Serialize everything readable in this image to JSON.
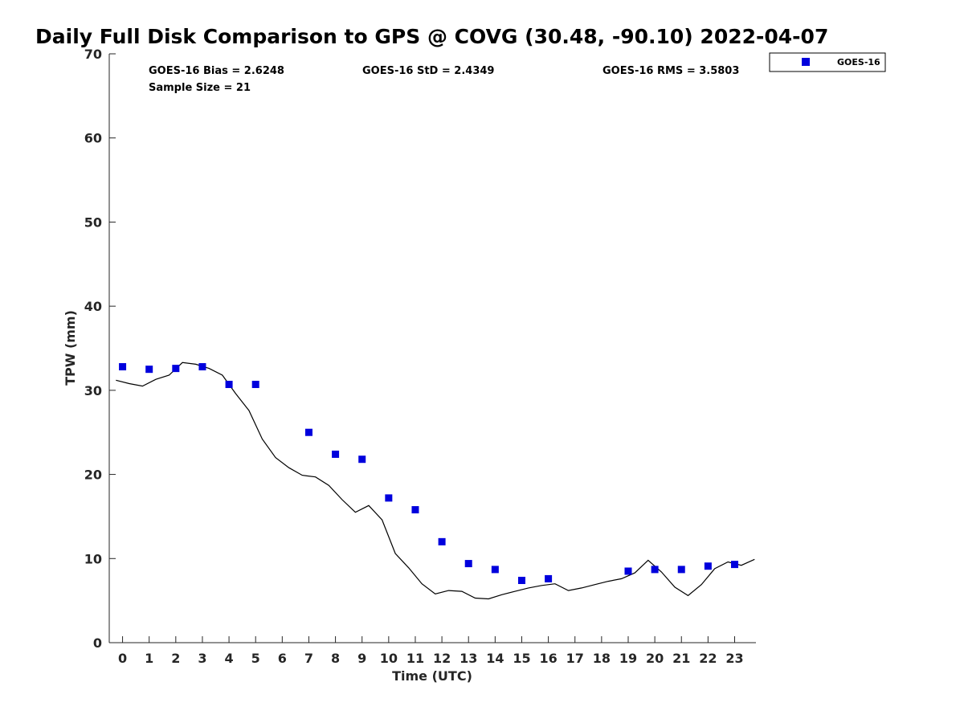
{
  "chart_data": {
    "type": "scatter",
    "title": "Daily Full Disk Comparison to GPS @ COVG (30.48, -90.10) 2022-04-07",
    "xlabel": "Time (UTC)",
    "ylabel": "TPW (mm)",
    "xlim": [
      -0.5,
      23.8
    ],
    "ylim": [
      0,
      70
    ],
    "xticks": [
      "0",
      "1",
      "2",
      "3",
      "4",
      "5",
      "6",
      "7",
      "8",
      "9",
      "10",
      "11",
      "12",
      "13",
      "14",
      "15",
      "16",
      "17",
      "18",
      "19",
      "20",
      "21",
      "22",
      "23"
    ],
    "yticks": [
      "0",
      "10",
      "20",
      "30",
      "40",
      "50",
      "60",
      "70"
    ],
    "grid": false,
    "legend_position": "top-right",
    "stats": {
      "bias": "GOES-16 Bias = 2.6248",
      "std": "GOES-16 StD = 2.4349",
      "rms": "GOES-16 RMS = 3.5803",
      "sample": "Sample Size = 21"
    },
    "series": [
      {
        "name": "GOES-16",
        "type": "scatter",
        "color": "#0000dd",
        "marker": "square",
        "x": [
          0,
          1,
          2,
          3,
          4,
          5,
          7,
          8,
          9,
          10,
          11,
          12,
          13,
          14,
          15,
          16,
          19,
          20,
          21,
          22,
          23
        ],
        "y": [
          32.8,
          32.5,
          32.6,
          32.8,
          30.7,
          30.7,
          25.0,
          22.4,
          21.8,
          17.2,
          15.8,
          12.0,
          9.4,
          8.7,
          7.4,
          7.6,
          8.5,
          8.7,
          8.7,
          9.1,
          9.3
        ]
      },
      {
        "type": "line",
        "color": "#000000",
        "x": [
          -0.25,
          0.25,
          0.75,
          1.25,
          1.75,
          2.25,
          2.75,
          3.25,
          3.75,
          4.25,
          4.75,
          5.25,
          5.75,
          6.25,
          6.75,
          7.25,
          7.75,
          8.25,
          8.75,
          9.25,
          9.75,
          10.25,
          10.75,
          11.25,
          11.75,
          12.25,
          12.75,
          13.25,
          13.75,
          14.25,
          14.75,
          15.25,
          15.75,
          16.25,
          16.75,
          17.25,
          17.75,
          18.25,
          18.75,
          19.25,
          19.75,
          20.25,
          20.75,
          21.25,
          21.75,
          22.25,
          22.75,
          23.25,
          23.75
        ],
        "y": [
          31.2,
          30.8,
          30.5,
          31.3,
          31.8,
          33.3,
          33.1,
          32.6,
          31.8,
          29.6,
          27.6,
          24.2,
          22.0,
          20.8,
          19.9,
          19.7,
          18.7,
          17.0,
          15.5,
          16.3,
          14.6,
          10.6,
          8.9,
          7.0,
          5.8,
          6.2,
          6.1,
          5.3,
          5.2,
          5.7,
          6.1,
          6.5,
          6.8,
          7.0,
          6.2,
          6.5,
          6.9,
          7.3,
          7.6,
          8.3,
          9.8,
          8.4,
          6.6,
          5.6,
          6.9,
          8.8,
          9.6,
          9.2,
          9.9
        ]
      }
    ]
  }
}
